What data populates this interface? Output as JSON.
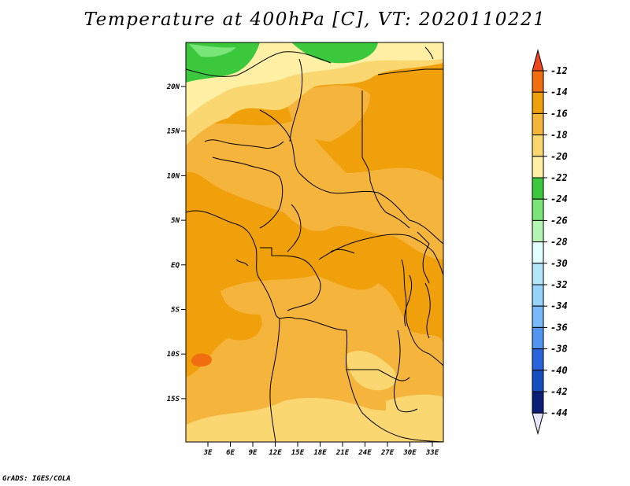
{
  "title": "Temperature at 400hPa [C], VT: 2020110221",
  "credit": "GrADS: IGES/COLA",
  "map": {
    "lat_labels": [
      "20N",
      "15N",
      "10N",
      "5N",
      "EQ",
      "5S",
      "10S",
      "15S"
    ],
    "lon_labels": [
      "3E",
      "6E",
      "9E",
      "12E",
      "15E",
      "18E",
      "21E",
      "24E",
      "27E",
      "30E",
      "33E"
    ]
  },
  "colorbar": {
    "labels": [
      "-12",
      "-14",
      "-16",
      "-18",
      "-20",
      "-22",
      "-24",
      "-26",
      "-28",
      "-30",
      "-32",
      "-34",
      "-36",
      "-38",
      "-40",
      "-42",
      "-44"
    ],
    "colors": [
      "#f0461e",
      "#f06e0f",
      "#f0a00a",
      "#f5b43c",
      "#fad770",
      "#fff0a5",
      "#3cc83c",
      "#7ae67a",
      "#b4f5b4",
      "#e1ffff",
      "#b4e6fa",
      "#96d2fa",
      "#78b9fa",
      "#5096f0",
      "#2864dc",
      "#1450be",
      "#0a1e78",
      "#e6e6ff"
    ]
  }
}
